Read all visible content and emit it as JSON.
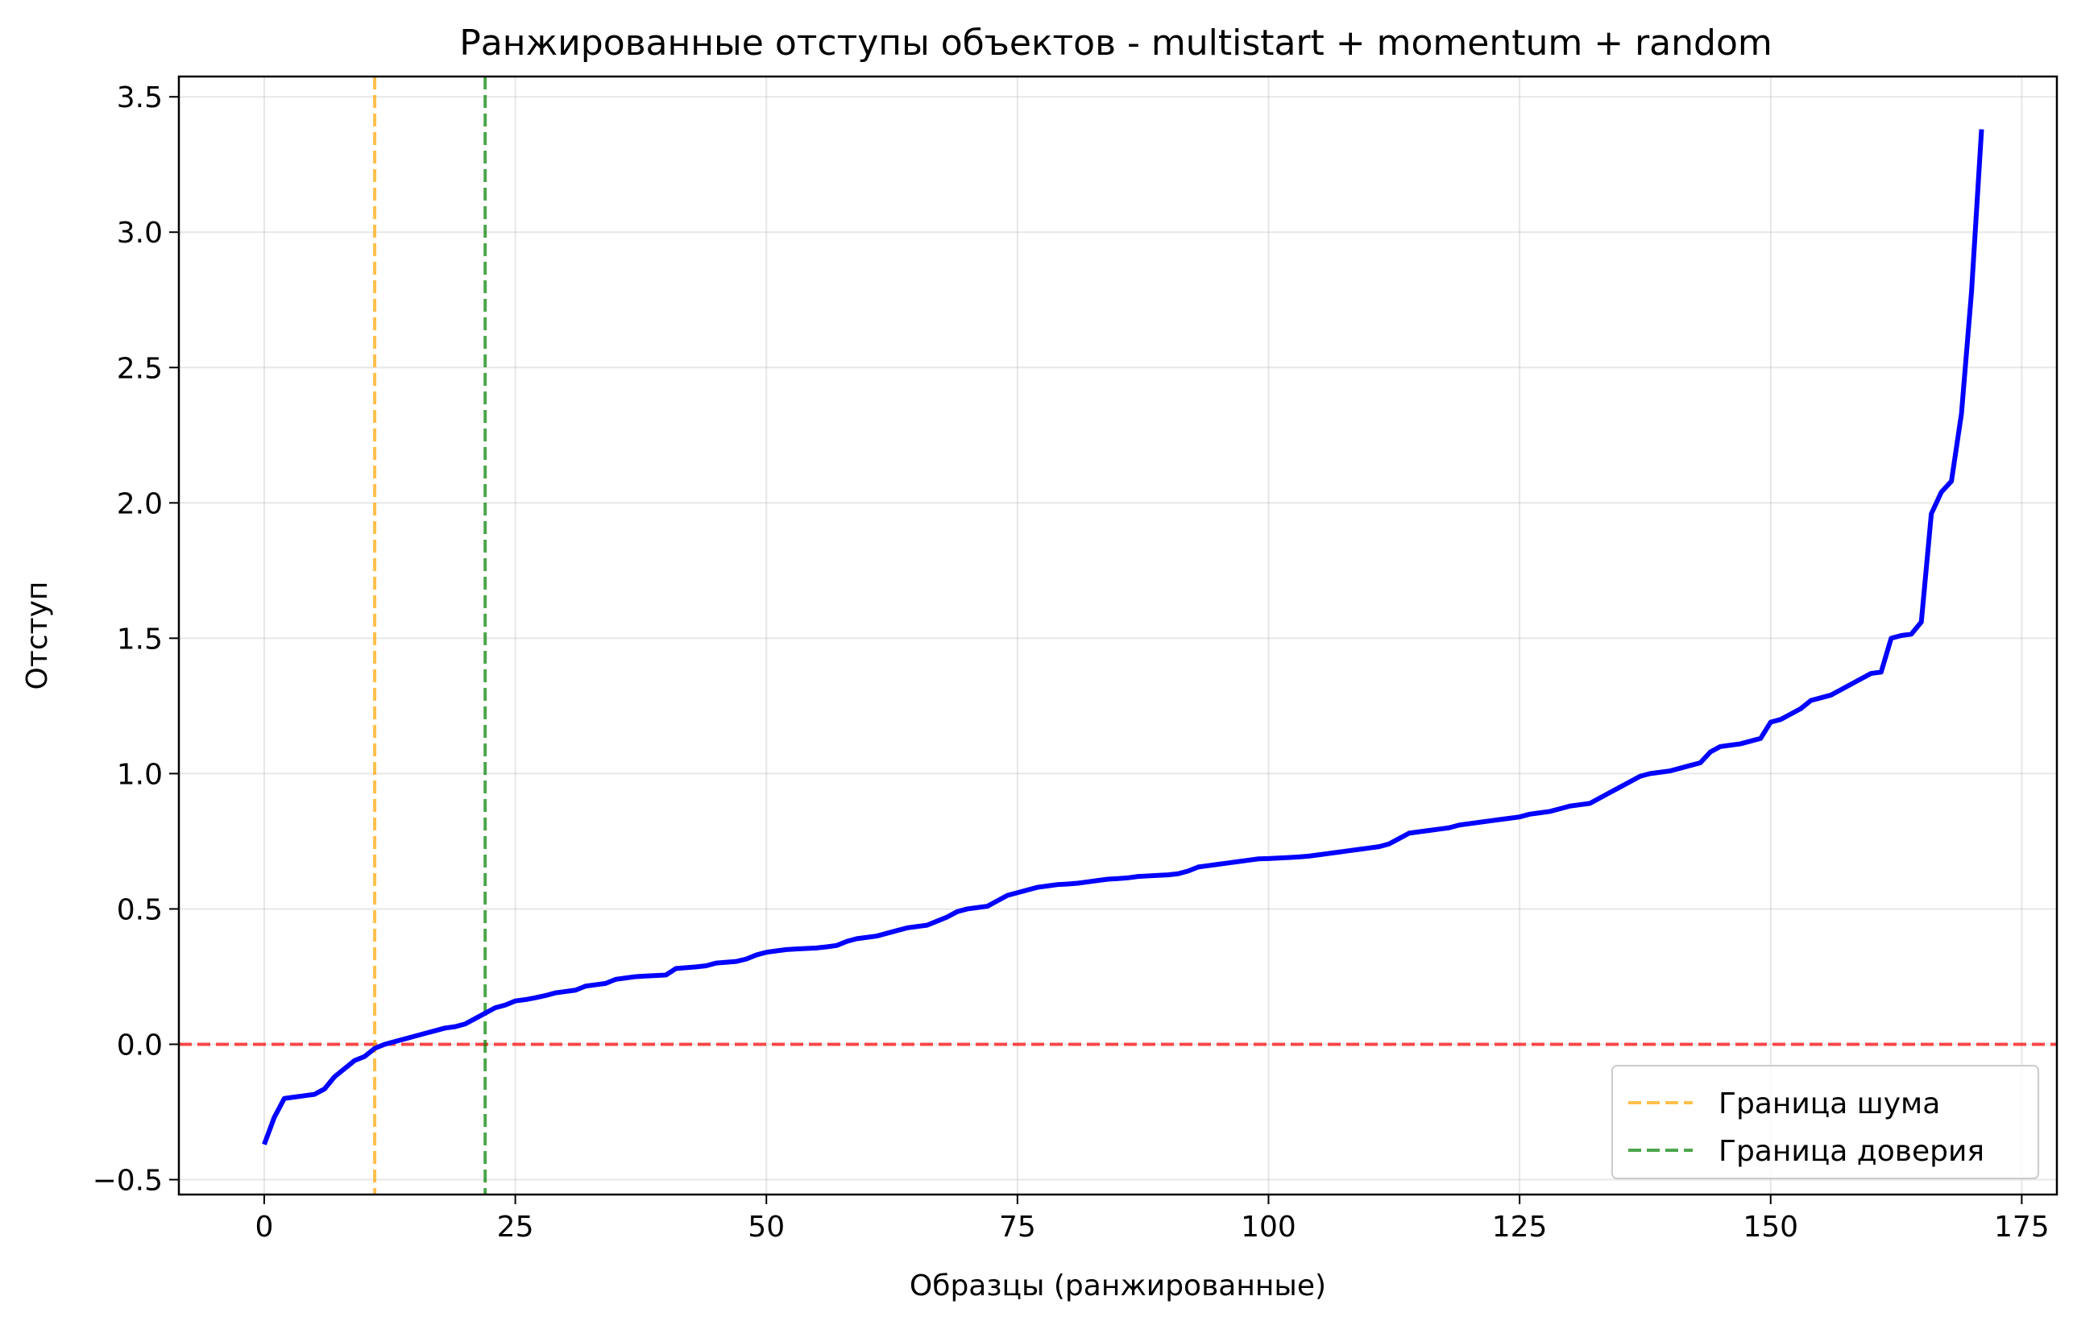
{
  "chart_data": {
    "type": "line",
    "title": "Ранжированные отступы объектов - multistart + momentum + random",
    "xlabel": "Образцы (ранжированные)",
    "ylabel": "Отступ",
    "xlim": [
      -8.5,
      178.5
    ],
    "ylim": [
      -0.555,
      3.575
    ],
    "x_ticks": [
      0,
      25,
      50,
      75,
      100,
      125,
      150,
      175
    ],
    "x_tick_labels": [
      "0",
      "25",
      "50",
      "75",
      "100",
      "125",
      "150",
      "175"
    ],
    "y_ticks": [
      -0.5,
      0.0,
      0.5,
      1.0,
      1.5,
      2.0,
      2.5,
      3.0,
      3.5
    ],
    "y_tick_labels": [
      "−0.5",
      "0.0",
      "0.5",
      "1.0",
      "1.5",
      "2.0",
      "2.5",
      "3.0",
      "3.5"
    ],
    "grid": true,
    "legend_position": "lower-right",
    "series": [
      {
        "color": "#0000ff",
        "x_start": 0,
        "values": [
          -0.37,
          -0.27,
          -0.2,
          -0.195,
          -0.19,
          -0.185,
          -0.165,
          -0.12,
          -0.09,
          -0.06,
          -0.045,
          -0.015,
          0.0,
          0.01,
          0.02,
          0.03,
          0.04,
          0.05,
          0.06,
          0.065,
          0.075,
          0.095,
          0.115,
          0.135,
          0.145,
          0.16,
          0.165,
          0.172,
          0.18,
          0.19,
          0.195,
          0.2,
          0.215,
          0.22,
          0.225,
          0.24,
          0.245,
          0.25,
          0.252,
          0.254,
          0.256,
          0.28,
          0.283,
          0.286,
          0.29,
          0.3,
          0.303,
          0.306,
          0.315,
          0.33,
          0.34,
          0.345,
          0.35,
          0.352,
          0.354,
          0.356,
          0.36,
          0.365,
          0.38,
          0.39,
          0.395,
          0.4,
          0.41,
          0.42,
          0.43,
          0.435,
          0.44,
          0.455,
          0.47,
          0.49,
          0.5,
          0.505,
          0.51,
          0.53,
          0.55,
          0.56,
          0.57,
          0.58,
          0.585,
          0.59,
          0.592,
          0.595,
          0.6,
          0.605,
          0.61,
          0.612,
          0.615,
          0.62,
          0.622,
          0.624,
          0.626,
          0.63,
          0.64,
          0.655,
          0.66,
          0.665,
          0.67,
          0.675,
          0.68,
          0.685,
          0.686,
          0.688,
          0.69,
          0.692,
          0.695,
          0.7,
          0.705,
          0.71,
          0.715,
          0.72,
          0.725,
          0.73,
          0.74,
          0.76,
          0.78,
          0.785,
          0.79,
          0.795,
          0.8,
          0.81,
          0.815,
          0.82,
          0.825,
          0.83,
          0.835,
          0.84,
          0.85,
          0.855,
          0.86,
          0.87,
          0.88,
          0.885,
          0.89,
          0.91,
          0.93,
          0.95,
          0.97,
          0.99,
          1.0,
          1.005,
          1.01,
          1.02,
          1.03,
          1.04,
          1.08,
          1.1,
          1.105,
          1.11,
          1.12,
          1.13,
          1.19,
          1.2,
          1.22,
          1.24,
          1.27,
          1.28,
          1.29,
          1.31,
          1.33,
          1.35,
          1.37,
          1.375,
          1.5,
          1.51,
          1.515,
          1.56,
          1.96,
          2.04,
          2.08,
          2.33,
          2.78,
          3.38
        ]
      }
    ],
    "reference_lines": [
      {
        "orientation": "horizontal",
        "value": 0.0,
        "color": "#ff0000"
      },
      {
        "orientation": "vertical",
        "value": 11,
        "color": "#ffa500",
        "label": "Граница шума"
      },
      {
        "orientation": "vertical",
        "value": 22,
        "color": "#008000",
        "label": "Граница доверия"
      }
    ]
  }
}
